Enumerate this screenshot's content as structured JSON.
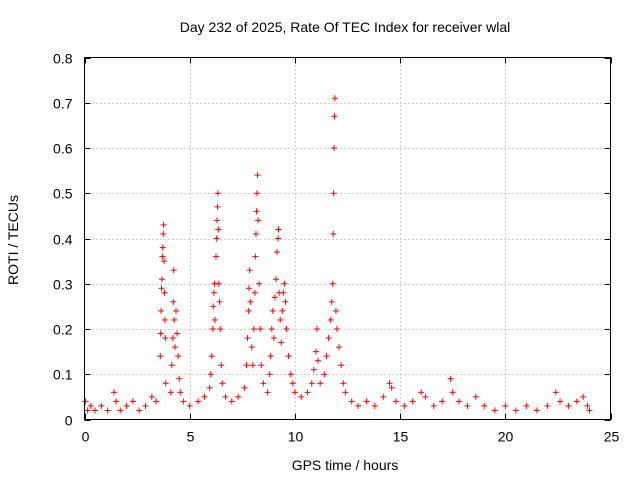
{
  "chart_data": {
    "type": "scatter",
    "title": "Day 232 of 2025, Rate Of TEC Index for receiver wlal",
    "xlabel": "GPS time / hours",
    "ylabel": "ROTI / TECUs",
    "xlim": [
      0,
      25
    ],
    "ylim": [
      0,
      0.8
    ],
    "x_ticks": [
      0,
      5,
      10,
      15,
      20,
      25
    ],
    "y_ticks": [
      0,
      0.1,
      0.2,
      0.3,
      0.4,
      0.5,
      0.6,
      0.7,
      0.8
    ],
    "x_tick_labels": [
      "0",
      "5",
      "10",
      "15",
      "20",
      "25"
    ],
    "y_tick_labels": [
      "0",
      "0.1",
      "0.2",
      "0.3",
      "0.4",
      "0.5",
      "0.6",
      "0.7",
      "0.8"
    ],
    "grid": true,
    "marker": "plus",
    "colors": {
      "series": "#ff0000",
      "grid": "#a0a0a0",
      "axis": "#000000"
    },
    "series": [
      {
        "name": "",
        "points": [
          [
            0.05,
            0.04
          ],
          [
            0.15,
            0.02
          ],
          [
            0.3,
            0.03
          ],
          [
            0.5,
            0.02
          ],
          [
            0.8,
            0.03
          ],
          [
            1.1,
            0.02
          ],
          [
            1.4,
            0.06
          ],
          [
            1.5,
            0.04
          ],
          [
            1.7,
            0.02
          ],
          [
            2.0,
            0.03
          ],
          [
            2.3,
            0.04
          ],
          [
            2.6,
            0.02
          ],
          [
            2.9,
            0.03
          ],
          [
            3.2,
            0.05
          ],
          [
            3.4,
            0.04
          ],
          [
            3.6,
            0.14
          ],
          [
            3.62,
            0.19
          ],
          [
            3.64,
            0.24
          ],
          [
            3.66,
            0.29
          ],
          [
            3.68,
            0.31
          ],
          [
            3.7,
            0.36
          ],
          [
            3.72,
            0.38
          ],
          [
            3.74,
            0.41
          ],
          [
            3.76,
            0.43
          ],
          [
            3.78,
            0.35
          ],
          [
            3.8,
            0.28
          ],
          [
            3.82,
            0.22
          ],
          [
            3.84,
            0.18
          ],
          [
            3.86,
            0.08
          ],
          [
            4.1,
            0.06
          ],
          [
            4.15,
            0.12
          ],
          [
            4.2,
            0.18
          ],
          [
            4.22,
            0.26
          ],
          [
            4.24,
            0.33
          ],
          [
            4.26,
            0.22
          ],
          [
            4.3,
            0.16
          ],
          [
            4.35,
            0.24
          ],
          [
            4.4,
            0.19
          ],
          [
            4.45,
            0.14
          ],
          [
            4.5,
            0.09
          ],
          [
            4.55,
            0.06
          ],
          [
            4.7,
            0.04
          ],
          [
            5.0,
            0.03
          ],
          [
            5.4,
            0.04
          ],
          [
            5.7,
            0.05
          ],
          [
            5.95,
            0.07
          ],
          [
            6.0,
            0.1
          ],
          [
            6.05,
            0.14
          ],
          [
            6.1,
            0.2
          ],
          [
            6.12,
            0.25
          ],
          [
            6.15,
            0.28
          ],
          [
            6.18,
            0.3
          ],
          [
            6.2,
            0.22
          ],
          [
            6.25,
            0.36
          ],
          [
            6.28,
            0.4
          ],
          [
            6.3,
            0.44
          ],
          [
            6.32,
            0.47
          ],
          [
            6.34,
            0.5
          ],
          [
            6.36,
            0.42
          ],
          [
            6.38,
            0.3
          ],
          [
            6.42,
            0.26
          ],
          [
            6.45,
            0.2
          ],
          [
            6.5,
            0.12
          ],
          [
            6.55,
            0.08
          ],
          [
            6.7,
            0.05
          ],
          [
            7.0,
            0.04
          ],
          [
            7.3,
            0.05
          ],
          [
            7.6,
            0.07
          ],
          [
            7.7,
            0.12
          ],
          [
            7.75,
            0.18
          ],
          [
            7.8,
            0.24
          ],
          [
            7.82,
            0.29
          ],
          [
            7.85,
            0.33
          ],
          [
            7.88,
            0.26
          ],
          [
            7.95,
            0.16
          ],
          [
            8.0,
            0.12
          ],
          [
            8.05,
            0.2
          ],
          [
            8.1,
            0.28
          ],
          [
            8.12,
            0.36
          ],
          [
            8.15,
            0.41
          ],
          [
            8.18,
            0.46
          ],
          [
            8.2,
            0.5
          ],
          [
            8.22,
            0.54
          ],
          [
            8.25,
            0.44
          ],
          [
            8.3,
            0.3
          ],
          [
            8.35,
            0.2
          ],
          [
            8.4,
            0.12
          ],
          [
            8.5,
            0.08
          ],
          [
            8.7,
            0.06
          ],
          [
            8.8,
            0.1
          ],
          [
            8.85,
            0.14
          ],
          [
            8.9,
            0.2
          ],
          [
            8.95,
            0.24
          ],
          [
            9.0,
            0.18
          ],
          [
            9.05,
            0.27
          ],
          [
            9.1,
            0.31
          ],
          [
            9.15,
            0.37
          ],
          [
            9.2,
            0.4
          ],
          [
            9.22,
            0.42
          ],
          [
            9.25,
            0.28
          ],
          [
            9.3,
            0.22
          ],
          [
            9.35,
            0.17
          ],
          [
            9.4,
            0.24
          ],
          [
            9.45,
            0.28
          ],
          [
            9.5,
            0.3
          ],
          [
            9.55,
            0.26
          ],
          [
            9.6,
            0.2
          ],
          [
            9.7,
            0.14
          ],
          [
            9.8,
            0.1
          ],
          [
            9.9,
            0.08
          ],
          [
            10.0,
            0.06
          ],
          [
            10.3,
            0.05
          ],
          [
            10.6,
            0.06
          ],
          [
            10.8,
            0.08
          ],
          [
            10.9,
            0.11
          ],
          [
            11.0,
            0.15
          ],
          [
            11.05,
            0.2
          ],
          [
            11.1,
            0.13
          ],
          [
            11.2,
            0.08
          ],
          [
            11.4,
            0.1
          ],
          [
            11.5,
            0.14
          ],
          [
            11.6,
            0.18
          ],
          [
            11.7,
            0.22
          ],
          [
            11.75,
            0.26
          ],
          [
            11.8,
            0.3
          ],
          [
            11.82,
            0.41
          ],
          [
            11.84,
            0.5
          ],
          [
            11.86,
            0.6
          ],
          [
            11.88,
            0.67
          ],
          [
            11.9,
            0.71
          ],
          [
            11.95,
            0.24
          ],
          [
            12.0,
            0.2
          ],
          [
            12.1,
            0.16
          ],
          [
            12.2,
            0.12
          ],
          [
            12.3,
            0.08
          ],
          [
            12.4,
            0.06
          ],
          [
            12.7,
            0.04
          ],
          [
            13.0,
            0.03
          ],
          [
            13.4,
            0.04
          ],
          [
            13.8,
            0.03
          ],
          [
            14.2,
            0.05
          ],
          [
            14.5,
            0.08
          ],
          [
            14.6,
            0.07
          ],
          [
            14.8,
            0.04
          ],
          [
            15.2,
            0.03
          ],
          [
            15.6,
            0.04
          ],
          [
            16.0,
            0.06
          ],
          [
            16.2,
            0.05
          ],
          [
            16.6,
            0.03
          ],
          [
            17.0,
            0.04
          ],
          [
            17.4,
            0.09
          ],
          [
            17.5,
            0.06
          ],
          [
            17.8,
            0.04
          ],
          [
            18.2,
            0.03
          ],
          [
            18.6,
            0.05
          ],
          [
            19.0,
            0.03
          ],
          [
            19.5,
            0.02
          ],
          [
            20.0,
            0.03
          ],
          [
            20.5,
            0.02
          ],
          [
            21.0,
            0.03
          ],
          [
            21.5,
            0.02
          ],
          [
            22.0,
            0.03
          ],
          [
            22.4,
            0.06
          ],
          [
            22.6,
            0.04
          ],
          [
            23.0,
            0.03
          ],
          [
            23.4,
            0.04
          ],
          [
            23.7,
            0.05
          ],
          [
            23.9,
            0.03
          ],
          [
            24.0,
            0.02
          ]
        ]
      }
    ]
  }
}
